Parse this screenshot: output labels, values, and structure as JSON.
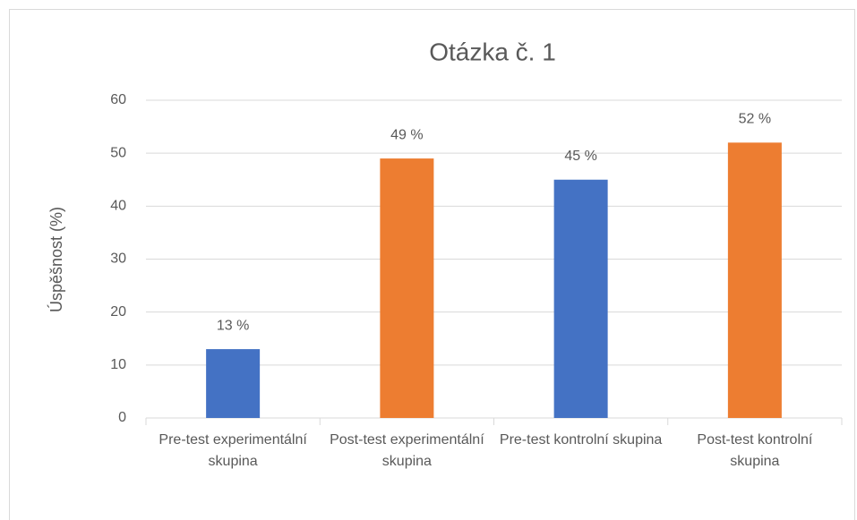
{
  "chart_data": {
    "type": "bar",
    "title": "Otázka č. 1",
    "y_label": "Úspěšnost (%)",
    "categories": [
      "Pre-test experimentální skupina",
      "Post-test experimentální skupina",
      "Pre-test kontrolní skupina",
      "Post-test kontrolní skupina"
    ],
    "values": [
      13,
      49,
      45,
      52
    ],
    "value_labels": [
      "13 %",
      "49 %",
      "45 %",
      "52 %"
    ],
    "colors": [
      "#4472c4",
      "#ed7d31",
      "#4472c4",
      "#ed7d31"
    ],
    "ylim": [
      0,
      60
    ],
    "yticks": [
      0,
      10,
      20,
      30,
      40,
      50,
      60
    ],
    "grid": true
  }
}
